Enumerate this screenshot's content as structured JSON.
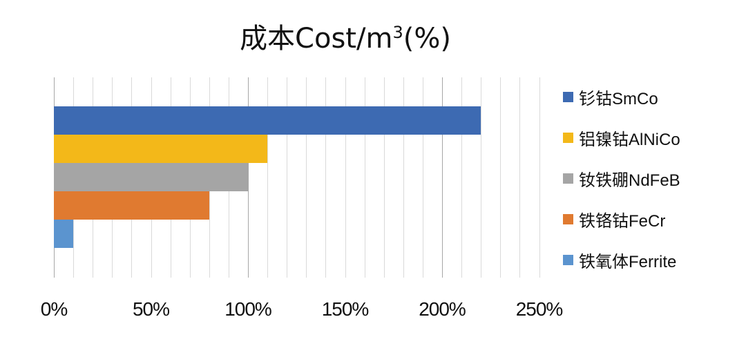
{
  "chart_data": {
    "type": "bar",
    "orientation": "horizontal",
    "title": "成本Cost/m³(%)",
    "title_main": "成本Cost/m",
    "title_sup": "3",
    "title_tail": "(%)",
    "xlabel": "",
    "ylabel": "",
    "xlim": [
      0,
      250
    ],
    "x_ticks": [
      "0%",
      "50%",
      "100%",
      "150%",
      "200%",
      "250%"
    ],
    "x_tick_values": [
      0,
      50,
      100,
      150,
      200,
      250
    ],
    "minor_grid_step": 10,
    "grid": true,
    "legend_position": "right",
    "series": [
      {
        "name": "钐钴SmCo",
        "value": 220,
        "color": "#3d6ab2"
      },
      {
        "name": "铝镍钴AlNiCo",
        "value": 110,
        "color": "#f3b819"
      },
      {
        "name": "钕铁硼NdFeB",
        "value": 100,
        "color": "#a5a5a5"
      },
      {
        "name": "铁铬钴FeCr",
        "value": 80,
        "color": "#e07a30"
      },
      {
        "name": "铁氧体Ferrite",
        "value": 10,
        "color": "#5b94cf"
      }
    ]
  }
}
